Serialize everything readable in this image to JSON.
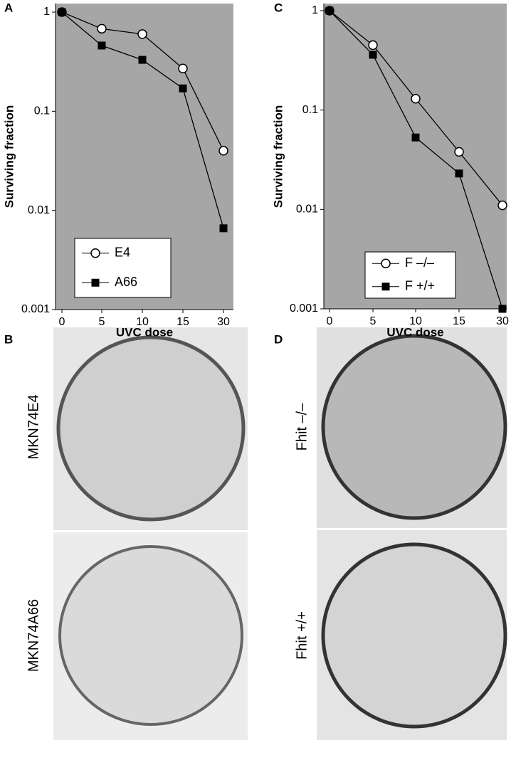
{
  "chart_data": [
    {
      "type": "line",
      "panel": "A",
      "y_label": "Surviving fraction",
      "x_label": "UVC dose",
      "categories": [
        "0",
        "5",
        "10",
        "15",
        "30"
      ],
      "log_y": true,
      "ylim": [
        0.001,
        1
      ],
      "yticks": [
        0.001,
        0.01,
        0.1,
        1
      ],
      "series": [
        {
          "name": "E4",
          "color": "#000000",
          "marker": "circle",
          "values": [
            1,
            0.68,
            0.6,
            0.27,
            0.04
          ]
        },
        {
          "name": "A66",
          "color": "#000000",
          "marker": "square",
          "values": [
            1,
            0.46,
            0.33,
            0.17,
            0.0066
          ]
        }
      ]
    },
    {
      "type": "line",
      "panel": "C",
      "y_label": "Surviving fraction",
      "x_label": "UVC dose",
      "categories": [
        "0",
        "5",
        "10",
        "15",
        "30"
      ],
      "log_y": true,
      "ylim": [
        0.001,
        1
      ],
      "yticks": [
        0.001,
        0.01,
        0.1,
        1
      ],
      "series": [
        {
          "name": "F –/–",
          "color": "#000000",
          "marker": "circle",
          "values": [
            1,
            0.45,
            0.13,
            0.038,
            0.011
          ]
        },
        {
          "name": "F +/+",
          "color": "#000000",
          "marker": "square",
          "values": [
            1,
            0.36,
            0.053,
            0.023,
            0.001
          ]
        }
      ]
    }
  ],
  "photos": [
    {
      "panel": "B",
      "labels": [
        "MKN74E4",
        "MKN74A66"
      ]
    },
    {
      "panel": "D",
      "labels": [
        "Fhit –/–",
        "Fhit +/+"
      ]
    }
  ]
}
